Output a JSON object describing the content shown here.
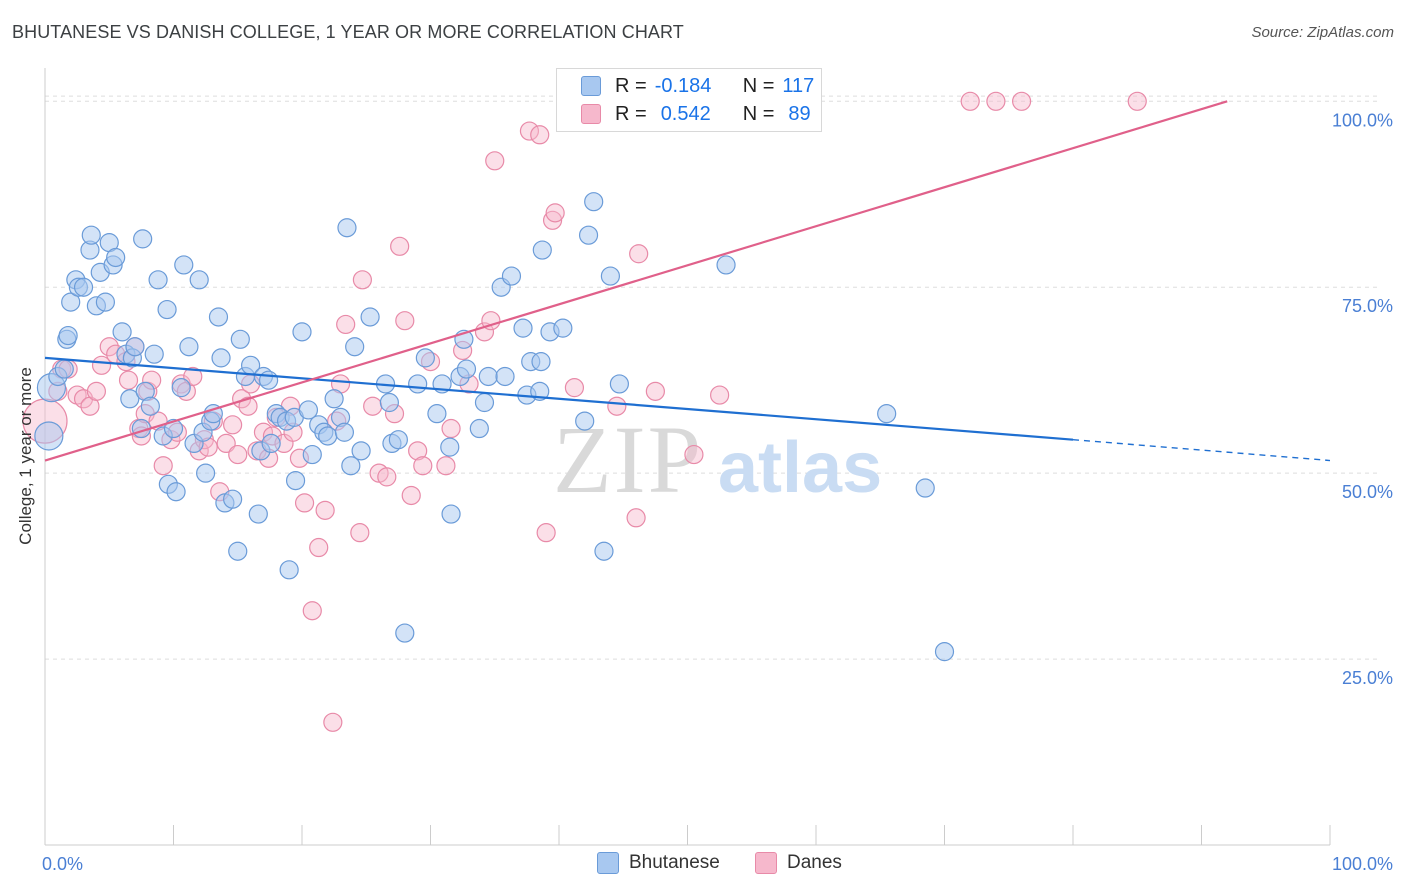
{
  "title": "BHUTANESE VS DANISH COLLEGE, 1 YEAR OR MORE CORRELATION CHART",
  "source": "Source: ZipAtlas.com",
  "colors": {
    "blue_fill": "#a8c8f0",
    "blue_stroke": "#6a9bd8",
    "blue_line": "#1f6fd1",
    "pink_fill": "#f6b8cc",
    "pink_stroke": "#e88aa8",
    "pink_line": "#e0608a",
    "tick_label": "#4a7fd4",
    "grid": "#dddddd"
  },
  "legend": {
    "rows": [
      {
        "r_label": "R =",
        "r_value": "-0.184",
        "n_label": "N =",
        "n_value": "117"
      },
      {
        "r_label": "R =",
        "r_value": "0.542",
        "n_label": "N =",
        "n_value": "89"
      }
    ]
  },
  "bottom_legend": [
    "Bhutanese",
    "Danes"
  ],
  "watermark": {
    "zip": "ZIP",
    "atlas": "atlas"
  },
  "chart_data": {
    "type": "scatter",
    "xlabel": "",
    "ylabel": "College, 1 year or more",
    "xlim": [
      0,
      100
    ],
    "ylim": [
      0,
      103
    ],
    "x_tick_labels": [
      "0.0%",
      "100.0%"
    ],
    "y_ticks": [
      25,
      50,
      75,
      100
    ],
    "y_tick_labels": [
      "25.0%",
      "50.0%",
      "75.0%",
      "100.0%"
    ],
    "grid": "horizontal dashed",
    "series": [
      {
        "name": "Bhutanese",
        "trend": {
          "x0": 0,
          "y0": 65.5,
          "x1": 80,
          "y1": 54.5,
          "dashed_to_x": 100,
          "dashed_to_y": 51.7
        },
        "points": [
          [
            0.3,
            55
          ],
          [
            0.5,
            61.5
          ],
          [
            1,
            63
          ],
          [
            1.5,
            64
          ],
          [
            1.7,
            68
          ],
          [
            1.8,
            68.5
          ],
          [
            2,
            73
          ],
          [
            2.4,
            76
          ],
          [
            2.6,
            75
          ],
          [
            3,
            75
          ],
          [
            3.5,
            80
          ],
          [
            3.6,
            82
          ],
          [
            4,
            72.5
          ],
          [
            4.3,
            77
          ],
          [
            4.7,
            73
          ],
          [
            5,
            81
          ],
          [
            5.3,
            78
          ],
          [
            5.5,
            79
          ],
          [
            6,
            69
          ],
          [
            6.3,
            66
          ],
          [
            6.6,
            60
          ],
          [
            6.8,
            65.5
          ],
          [
            7,
            67
          ],
          [
            7.5,
            56
          ],
          [
            7.6,
            81.5
          ],
          [
            7.8,
            61
          ],
          [
            8.2,
            59
          ],
          [
            8.5,
            66
          ],
          [
            8.8,
            76
          ],
          [
            9.2,
            55
          ],
          [
            9.5,
            72
          ],
          [
            9.6,
            48.5
          ],
          [
            10,
            56
          ],
          [
            10.2,
            47.5
          ],
          [
            10.6,
            61.5
          ],
          [
            10.8,
            78
          ],
          [
            11.2,
            67
          ],
          [
            11.6,
            54
          ],
          [
            12,
            76
          ],
          [
            12.3,
            55.5
          ],
          [
            12.5,
            50
          ],
          [
            12.9,
            57
          ],
          [
            13.1,
            58
          ],
          [
            13.5,
            71
          ],
          [
            13.7,
            65.5
          ],
          [
            14,
            46
          ],
          [
            14.6,
            46.5
          ],
          [
            15,
            39.5
          ],
          [
            15.2,
            68
          ],
          [
            15.6,
            63
          ],
          [
            16,
            64.5
          ],
          [
            16.6,
            44.5
          ],
          [
            16.8,
            53
          ],
          [
            17,
            63
          ],
          [
            17.4,
            62.5
          ],
          [
            17.6,
            54
          ],
          [
            18,
            58
          ],
          [
            18.3,
            57.5
          ],
          [
            18.8,
            57
          ],
          [
            19,
            37
          ],
          [
            19.4,
            57.5
          ],
          [
            19.5,
            49
          ],
          [
            20,
            69
          ],
          [
            20.5,
            58.5
          ],
          [
            20.8,
            52.5
          ],
          [
            21.3,
            56.5
          ],
          [
            21.7,
            55.5
          ],
          [
            22,
            55
          ],
          [
            22.5,
            60
          ],
          [
            23,
            57.5
          ],
          [
            23.3,
            55.5
          ],
          [
            23.5,
            83
          ],
          [
            23.8,
            51
          ],
          [
            24.1,
            67
          ],
          [
            24.6,
            53
          ],
          [
            25.3,
            71
          ],
          [
            26.5,
            62
          ],
          [
            26.8,
            59.5
          ],
          [
            27,
            54
          ],
          [
            27.5,
            54.5
          ],
          [
            28,
            28.5
          ],
          [
            29,
            62
          ],
          [
            29.6,
            65.5
          ],
          [
            30.5,
            58
          ],
          [
            30.9,
            62
          ],
          [
            31.5,
            53.5
          ],
          [
            31.6,
            44.5
          ],
          [
            32.3,
            63
          ],
          [
            32.6,
            68
          ],
          [
            32.8,
            64
          ],
          [
            33.8,
            56
          ],
          [
            34.2,
            59.5
          ],
          [
            34.5,
            63
          ],
          [
            35.5,
            75
          ],
          [
            35.8,
            63
          ],
          [
            36.3,
            76.5
          ],
          [
            37.2,
            69.5
          ],
          [
            37.5,
            60.5
          ],
          [
            37.8,
            65
          ],
          [
            38.5,
            61
          ],
          [
            38.6,
            65
          ],
          [
            38.7,
            80
          ],
          [
            39.3,
            69
          ],
          [
            40.3,
            69.5
          ],
          [
            42,
            57
          ],
          [
            42.3,
            82
          ],
          [
            42.7,
            86.5
          ],
          [
            43.5,
            39.5
          ],
          [
            44,
            76.5
          ],
          [
            44.7,
            62
          ],
          [
            53,
            78
          ],
          [
            65.5,
            58
          ],
          [
            68.5,
            48
          ],
          [
            70,
            26
          ]
        ],
        "sizes": {
          "0.3": "large",
          "0.5": "large"
        }
      },
      {
        "name": "Danes",
        "trend": {
          "x0": 0,
          "y0": 51.7,
          "x1": 92,
          "y1": 100
        },
        "points": [
          [
            0,
            57
          ],
          [
            1,
            61
          ],
          [
            1.3,
            64
          ],
          [
            1.8,
            64
          ],
          [
            2.5,
            60.5
          ],
          [
            3,
            60
          ],
          [
            3.5,
            59
          ],
          [
            4,
            61
          ],
          [
            4.4,
            64.5
          ],
          [
            5,
            67
          ],
          [
            5.5,
            66
          ],
          [
            6.3,
            65
          ],
          [
            6.5,
            62.5
          ],
          [
            7,
            67
          ],
          [
            7.3,
            56
          ],
          [
            7.5,
            55
          ],
          [
            7.8,
            58
          ],
          [
            8,
            61
          ],
          [
            8.3,
            62.5
          ],
          [
            8.8,
            57
          ],
          [
            9.2,
            51
          ],
          [
            9.8,
            54.5
          ],
          [
            10.3,
            55.5
          ],
          [
            10.6,
            62
          ],
          [
            11,
            61
          ],
          [
            11.5,
            63
          ],
          [
            12,
            53
          ],
          [
            12.4,
            54.5
          ],
          [
            12.7,
            53.5
          ],
          [
            13.1,
            57
          ],
          [
            13.6,
            47.5
          ],
          [
            14.1,
            54
          ],
          [
            14.6,
            56.5
          ],
          [
            15,
            52.5
          ],
          [
            15.3,
            60
          ],
          [
            15.8,
            59
          ],
          [
            16,
            62
          ],
          [
            16.5,
            53
          ],
          [
            17,
            55.5
          ],
          [
            17.4,
            52
          ],
          [
            17.7,
            55
          ],
          [
            18,
            57.5
          ],
          [
            18.6,
            54
          ],
          [
            19.1,
            59
          ],
          [
            19.3,
            55.5
          ],
          [
            19.8,
            52
          ],
          [
            20.2,
            46
          ],
          [
            20.8,
            31.5
          ],
          [
            21.3,
            40
          ],
          [
            21.8,
            45
          ],
          [
            22.4,
            16.5
          ],
          [
            22.7,
            57
          ],
          [
            23,
            62
          ],
          [
            23.4,
            70
          ],
          [
            24.5,
            42
          ],
          [
            24.7,
            76
          ],
          [
            25.5,
            59
          ],
          [
            26,
            50
          ],
          [
            26.6,
            49.5
          ],
          [
            27.2,
            58
          ],
          [
            27.6,
            80.5
          ],
          [
            28,
            70.5
          ],
          [
            28.5,
            47
          ],
          [
            29,
            53
          ],
          [
            29.4,
            51
          ],
          [
            30,
            65
          ],
          [
            31.2,
            51
          ],
          [
            31.6,
            56
          ],
          [
            32.5,
            66.5
          ],
          [
            33,
            62
          ],
          [
            34.2,
            69
          ],
          [
            34.7,
            70.5
          ],
          [
            35,
            92
          ],
          [
            37.7,
            96
          ],
          [
            38.5,
            95.5
          ],
          [
            39,
            42
          ],
          [
            39.5,
            84
          ],
          [
            39.7,
            85
          ],
          [
            41.2,
            61.5
          ],
          [
            44.5,
            59
          ],
          [
            46,
            44
          ],
          [
            46.2,
            79.5
          ],
          [
            47.5,
            61
          ],
          [
            50.5,
            52.5
          ],
          [
            52.5,
            60.5
          ],
          [
            72,
            100
          ],
          [
            74,
            100
          ],
          [
            76,
            100
          ],
          [
            85,
            100
          ]
        ]
      }
    ]
  }
}
